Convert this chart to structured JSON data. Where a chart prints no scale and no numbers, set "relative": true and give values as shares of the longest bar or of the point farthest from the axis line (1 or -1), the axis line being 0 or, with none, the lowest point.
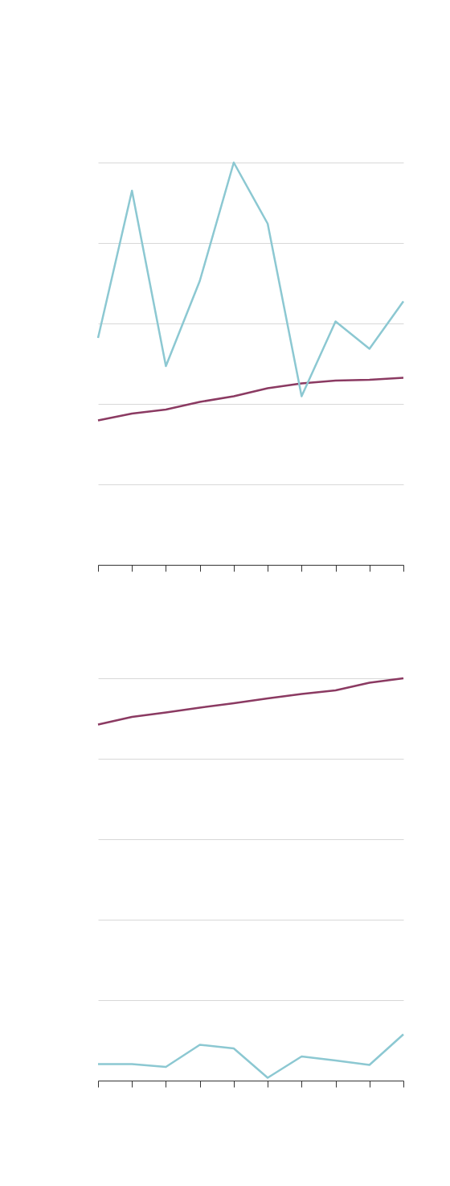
{
  "chart_data": [
    {
      "type": "line",
      "relative": true,
      "categories": [
        null,
        null,
        null,
        null,
        null,
        null,
        null,
        null,
        null,
        null
      ],
      "grid": "y",
      "tick_labels": false,
      "marker": "none",
      "line_style": "solid",
      "series": [
        {
          "color": "#8b3a62",
          "values": [
            0.359,
            0.376,
            0.386,
            0.405,
            0.419,
            0.439,
            0.451,
            0.458,
            0.46,
            0.465
          ]
        },
        {
          "color": "#8cc8d2",
          "values": [
            0.564,
            0.93,
            0.494,
            0.706,
            1.0,
            0.848,
            0.419,
            0.605,
            0.537,
            0.655
          ]
        }
      ]
    },
    {
      "type": "line",
      "relative": true,
      "categories": [
        null,
        null,
        null,
        null,
        null,
        null,
        null,
        null,
        null,
        null
      ],
      "grid": "y",
      "tick_labels": false,
      "marker": "none",
      "line_style": "solid",
      "series": [
        {
          "color": "#8b3a62",
          "values": [
            0.885,
            0.904,
            0.915,
            0.927,
            0.938,
            0.95,
            0.961,
            0.97,
            0.989,
            1.0
          ]
        },
        {
          "color": "#8cc8d2",
          "values": [
            0.041,
            0.041,
            0.034,
            0.089,
            0.08,
            0.007,
            0.06,
            0.05,
            0.039,
            0.115
          ]
        }
      ]
    }
  ]
}
